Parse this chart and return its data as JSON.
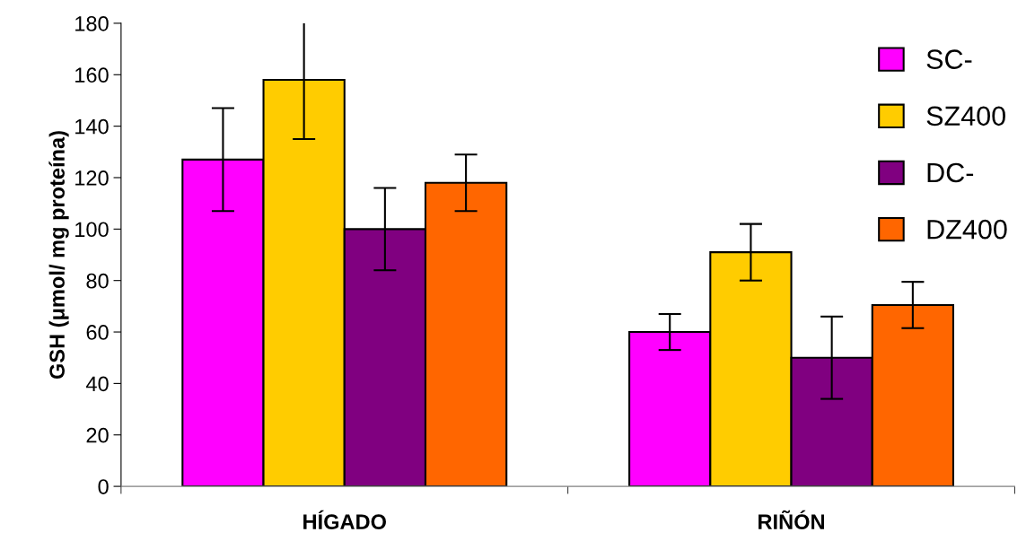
{
  "chart_data": {
    "type": "bar",
    "ylabel": "GSH (μmol/ mg proteína)",
    "categories": [
      "HÍGADO",
      "RIÑÓN"
    ],
    "series": [
      {
        "name": "SC-",
        "color": "#ff00ff",
        "values": [
          127,
          60
        ],
        "errors": [
          20,
          7
        ]
      },
      {
        "name": "SZ400",
        "color": "#ffcc00",
        "values": [
          158,
          91
        ],
        "errors": [
          23,
          11
        ]
      },
      {
        "name": "DC-",
        "color": "#800080",
        "values": [
          100,
          50
        ],
        "errors": [
          16,
          16
        ]
      },
      {
        "name": "DZ400",
        "color": "#ff6600",
        "values": [
          118,
          70.5
        ],
        "errors": [
          11,
          9
        ]
      }
    ],
    "ylim": [
      0,
      180
    ],
    "yticks": [
      0,
      20,
      40,
      60,
      80,
      100,
      120,
      140,
      160,
      180
    ],
    "grid": false,
    "legend": "top right"
  }
}
